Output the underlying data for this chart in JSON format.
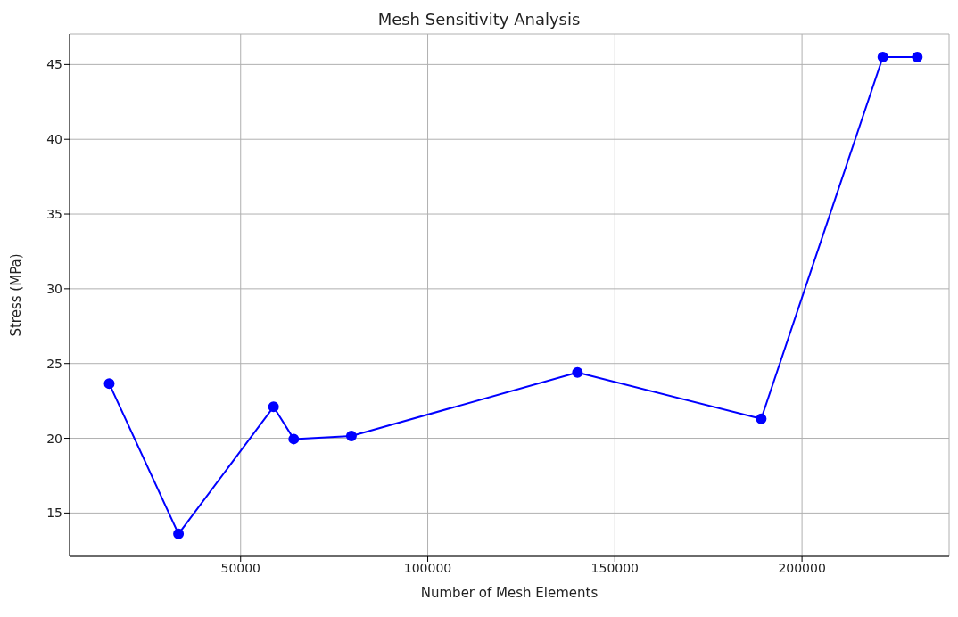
{
  "chart_data": {
    "type": "line",
    "title": "Mesh Sensitivity Analysis",
    "xlabel": "Number of Mesh Elements",
    "ylabel": "Stress (MPa)",
    "x": [
      14900,
      33400,
      58800,
      64200,
      79600,
      140000,
      189100,
      221600,
      230800
    ],
    "series": [
      {
        "color": "#0000ff",
        "values": [
          23.65,
          13.6,
          22.1,
          19.95,
          20.15,
          24.4,
          21.3,
          45.5,
          45.5
        ]
      }
    ],
    "xlim": [
      4300,
      239300
    ],
    "xticks": [
      50000,
      100000,
      150000,
      200000
    ],
    "ylim": [
      12.1,
      47.05
    ],
    "yticks": [
      15,
      20,
      25,
      30,
      35,
      40,
      45
    ],
    "grid": true,
    "marker": "circle",
    "line_style": "solid"
  }
}
